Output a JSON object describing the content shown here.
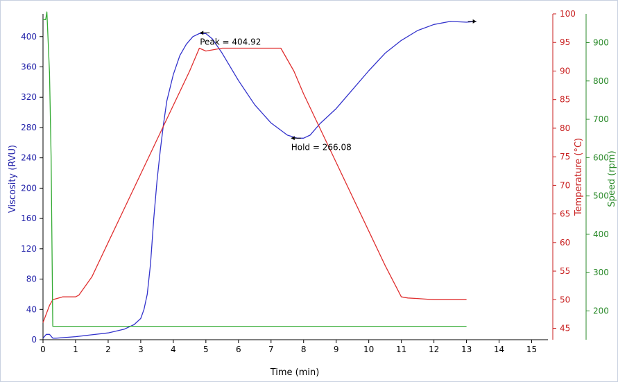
{
  "chart_data": {
    "type": "line",
    "xlabel": "Time (min)",
    "xlim": [
      0,
      15.5
    ],
    "xticks": [
      0,
      1,
      2,
      3,
      4,
      5,
      6,
      7,
      8,
      9,
      10,
      11,
      12,
      13,
      14,
      15
    ],
    "axes": {
      "viscosity": {
        "label": "Viscosity (RVU)",
        "color": "#1f1fa8",
        "ylim": [
          0,
          430
        ],
        "ticks": [
          0,
          40,
          80,
          120,
          160,
          200,
          240,
          280,
          320,
          360,
          400
        ]
      },
      "temperature": {
        "label": "Temperature (°C)",
        "color": "#c81e1e",
        "ylim": [
          43,
          100
        ],
        "ticks": [
          45,
          50,
          55,
          60,
          65,
          70,
          75,
          80,
          85,
          90,
          95,
          100
        ]
      },
      "speed": {
        "label": "Speed (rpm)",
        "color": "#2a8a2a",
        "ylim": [
          125,
          975
        ],
        "ticks": [
          200,
          300,
          400,
          500,
          600,
          700,
          800,
          900
        ]
      }
    },
    "series": [
      {
        "name": "Viscosity",
        "axis": "viscosity",
        "color": "#3333cc",
        "x": [
          0.0,
          0.1,
          0.2,
          0.3,
          0.4,
          1.0,
          2.0,
          2.5,
          2.8,
          3.0,
          3.1,
          3.2,
          3.3,
          3.4,
          3.5,
          3.6,
          3.7,
          3.8,
          4.0,
          4.2,
          4.4,
          4.6,
          4.8,
          5.0,
          5.2,
          5.5,
          6.0,
          6.5,
          7.0,
          7.5,
          7.8,
          8.0,
          8.2,
          8.5,
          9.0,
          9.5,
          10.0,
          10.5,
          11.0,
          11.5,
          12.0,
          12.5,
          13.0,
          13.3
        ],
        "y": [
          2,
          7,
          7,
          2,
          2,
          4,
          9,
          14,
          20,
          28,
          40,
          60,
          100,
          160,
          210,
          250,
          285,
          315,
          350,
          375,
          390,
          400,
          404,
          404,
          397,
          378,
          342,
          310,
          286,
          270,
          266,
          266,
          270,
          285,
          305,
          330,
          355,
          378,
          395,
          408,
          416,
          420,
          419,
          420
        ]
      },
      {
        "name": "Temperature",
        "axis": "temperature",
        "color": "#e03030",
        "x": [
          0.0,
          0.2,
          0.3,
          0.6,
          1.0,
          1.1,
          1.5,
          2.0,
          2.5,
          3.0,
          3.5,
          4.0,
          4.5,
          4.8,
          5.0,
          5.5,
          6.0,
          6.5,
          7.0,
          7.3,
          7.7,
          8.0,
          8.5,
          9.0,
          9.5,
          10.0,
          10.5,
          11.0,
          11.2,
          11.5,
          12.0,
          12.5,
          13.0
        ],
        "y": [
          46,
          49,
          50,
          50.5,
          50.5,
          50.8,
          54,
          60,
          66,
          72,
          78,
          84,
          90,
          94,
          93.5,
          94,
          94,
          94,
          94,
          94,
          90,
          86,
          80,
          74,
          68,
          62,
          56,
          50.5,
          50.3,
          50.2,
          50,
          50,
          50
        ]
      },
      {
        "name": "Speed",
        "axis": "speed",
        "color": "#33aa33",
        "x": [
          0.0,
          0.08,
          0.12,
          0.2,
          0.25,
          0.3,
          13.0
        ],
        "y": [
          960,
          960,
          980,
          820,
          600,
          160,
          160
        ]
      }
    ],
    "annotations": [
      {
        "text": "Peak = 404.92",
        "x": 5.2,
        "y": 405,
        "axis": "viscosity"
      },
      {
        "text": "Hold = 266.08",
        "x": 8.0,
        "y": 266,
        "axis": "viscosity"
      }
    ]
  }
}
